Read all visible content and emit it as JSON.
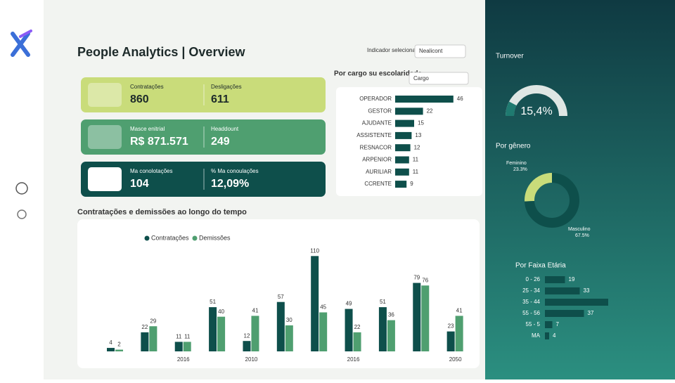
{
  "header": {
    "title": "People Analytics | Overview",
    "selector_label": "Indicador selecionado",
    "selector_value": "Nealicont"
  },
  "kpis": [
    {
      "color": "#c9dc7a",
      "items": [
        {
          "label": "Contratações",
          "value": "860"
        },
        {
          "label": "Desligações",
          "value": "611"
        }
      ]
    },
    {
      "color": "#4f9f70",
      "items": [
        {
          "label": "Masce enitrial",
          "value": "R$ 871.571"
        },
        {
          "label": "Headdount",
          "value": "249"
        }
      ]
    },
    {
      "color": "#0e4f4b",
      "items": [
        {
          "label": "Ma conolotações",
          "value": "104"
        },
        {
          "label": "% Ma conoulações",
          "value": "12,09%"
        }
      ]
    }
  ],
  "cargo": {
    "type": "bar",
    "title": "Por cargo su escolaridade",
    "dropdown": "Cargo",
    "color": "#0e4f4b",
    "categories": [
      "OPERADOR",
      "GESTOR",
      "AJUDANTE",
      "ASSISTENTE",
      "RESNACOR",
      "ARPENIOR",
      "AURILIAR",
      "CCRENTE"
    ],
    "values": [
      46,
      22,
      15,
      13,
      12,
      11,
      11,
      9
    ],
    "xlim": [
      0,
      50
    ]
  },
  "timeline": {
    "type": "bar",
    "title": "Contratações e demissões ao longo do tempo",
    "categories": [
      null,
      null,
      "2016",
      null,
      "2010",
      null,
      null,
      "2016",
      null,
      null,
      "2050"
    ],
    "series": [
      {
        "name": "Contratações",
        "color": "#0e4f4b",
        "values": [
          4,
          22,
          11,
          51,
          12,
          57,
          110,
          49,
          51,
          79,
          23
        ]
      },
      {
        "name": "Demissões",
        "color": "#4f9f70",
        "values": [
          2,
          29,
          11,
          40,
          41,
          30,
          45,
          22,
          36,
          76,
          41
        ]
      }
    ],
    "ylim": [
      0,
      120
    ]
  },
  "turnover": {
    "type": "gauge",
    "title": "Turnover",
    "value": 15.4,
    "value_label": "15,4%",
    "lim": [
      0,
      100
    ]
  },
  "gender": {
    "type": "pie",
    "title": "Por gênero",
    "categories": [
      "Feminino",
      "Masculino"
    ],
    "values": [
      23.3,
      67.5
    ],
    "value_labels": [
      "23.3%",
      "67.5%"
    ],
    "colors": [
      "#c9dc7a",
      "#0e4f4b"
    ]
  },
  "age": {
    "type": "bar",
    "title": "Por Faixa Etária",
    "color": "#0e4f4b",
    "categories": [
      "0 - 26",
      "25 - 34",
      "35 - 44",
      "55 - 56",
      "55 - 5",
      "MA"
    ],
    "values": [
      19,
      33,
      60,
      37,
      7,
      4
    ],
    "value_labels": [
      "19",
      "33",
      null,
      "37",
      "7",
      "4"
    ],
    "xlim": [
      0,
      60
    ]
  }
}
